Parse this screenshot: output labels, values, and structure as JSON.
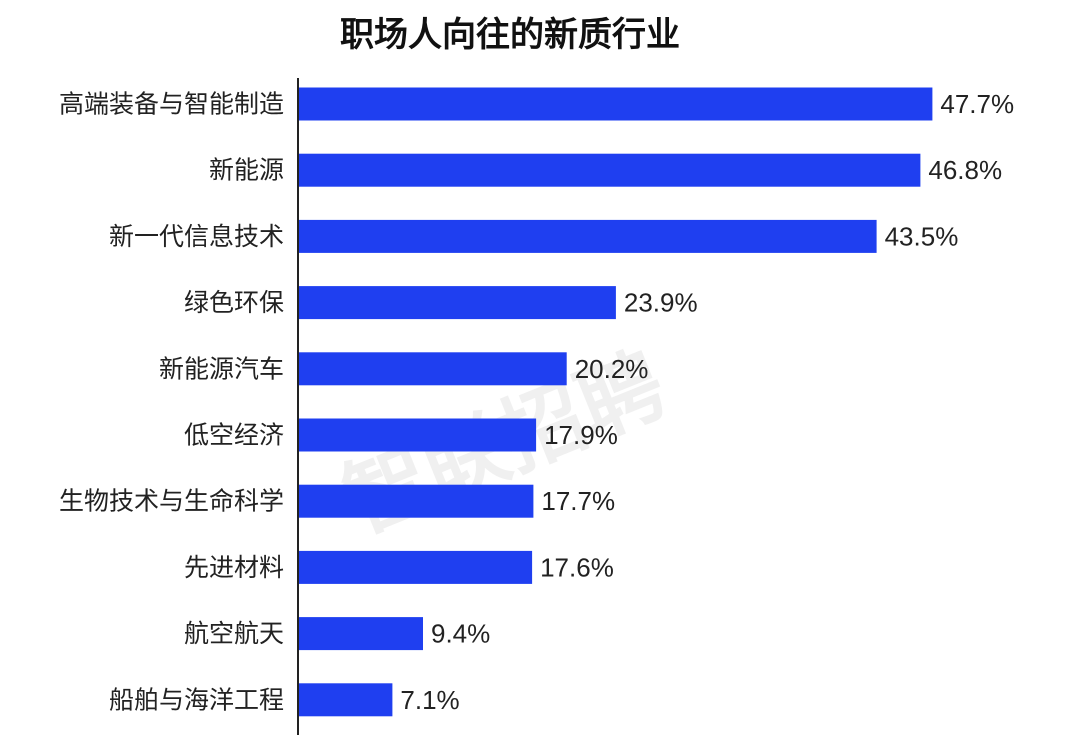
{
  "watermark_text": "智联招聘",
  "colors": {
    "bar": "#1f3ff0",
    "axis": "#222222",
    "text": "#222222",
    "title": "#111111",
    "background": "#ffffff"
  },
  "chart_data": {
    "type": "bar",
    "orientation": "horizontal",
    "title": "职场人向往的新质行业",
    "xlabel": "",
    "ylabel": "",
    "categories": [
      "高端装备与智能制造",
      "新能源",
      "新一代信息技术",
      "绿色环保",
      "新能源汽车",
      "低空经济",
      "生物技术与生命科学",
      "先进材料",
      "航空航天",
      "船舶与海洋工程"
    ],
    "values": [
      47.7,
      46.8,
      43.5,
      23.9,
      20.2,
      17.9,
      17.7,
      17.6,
      9.4,
      7.1
    ],
    "value_labels": [
      "47.7%",
      "46.8%",
      "43.5%",
      "23.9%",
      "20.2%",
      "17.9%",
      "17.7%",
      "17.6%",
      "9.4%",
      "7.1%"
    ],
    "unit": "%",
    "xlim": [
      0,
      50
    ],
    "grid": false,
    "legend": "none"
  }
}
